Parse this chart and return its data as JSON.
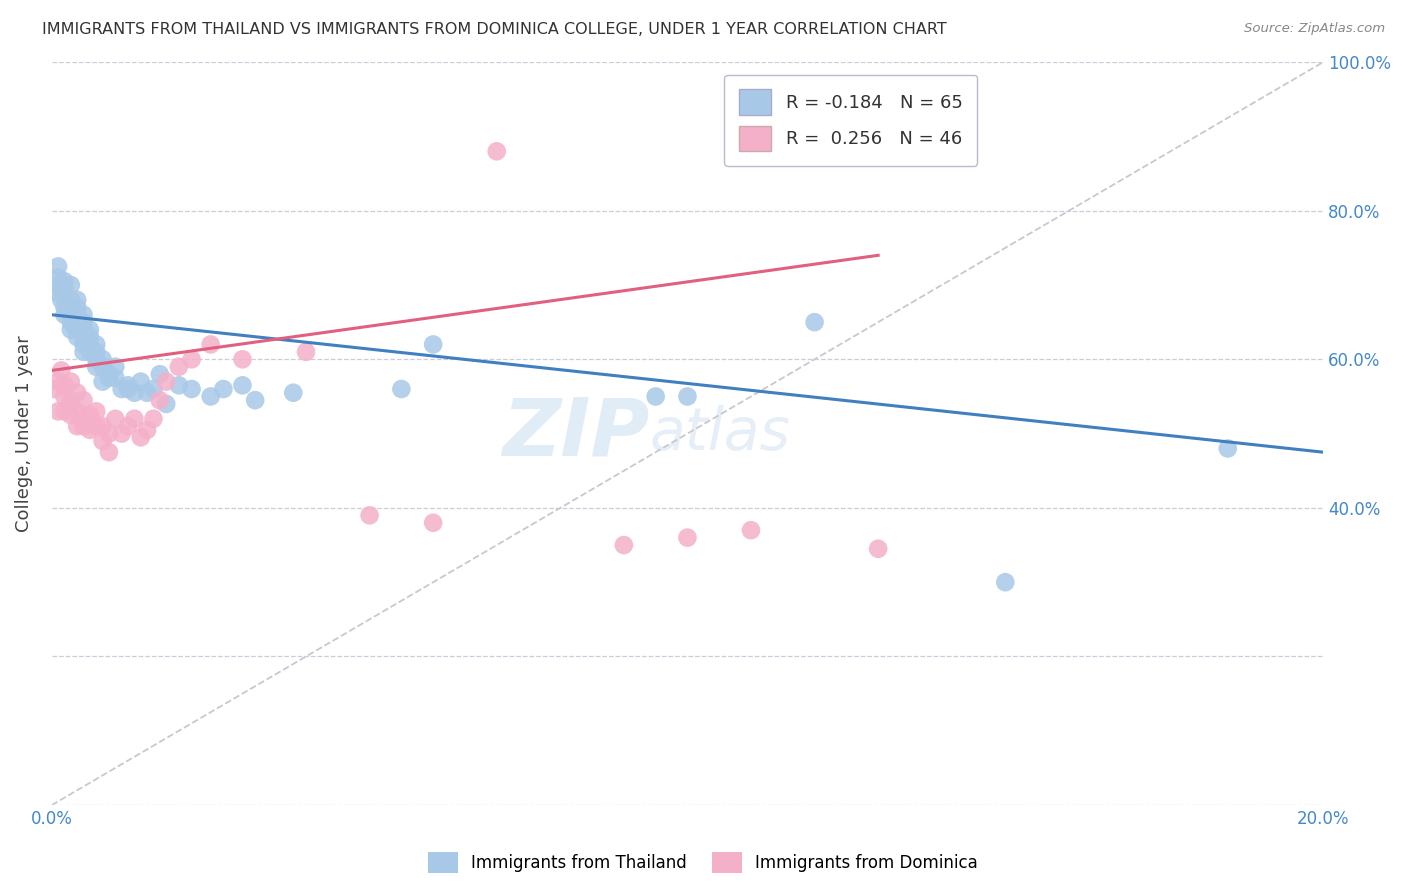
{
  "title": "IMMIGRANTS FROM THAILAND VS IMMIGRANTS FROM DOMINICA COLLEGE, UNDER 1 YEAR CORRELATION CHART",
  "source": "Source: ZipAtlas.com",
  "ylabel": "College, Under 1 year",
  "x_min": 0.0,
  "x_max": 0.2,
  "y_min": 0.0,
  "y_max": 1.0,
  "legend_r_thailand": "-0.184",
  "legend_n_thailand": "65",
  "legend_r_dominica": "0.256",
  "legend_n_dominica": "46",
  "color_thailand": "#a8c8e8",
  "color_dominica": "#f4b0c8",
  "color_line_thailand": "#4080c0",
  "color_line_dominica": "#e06080",
  "color_line_diagonal": "#c8c8d0",
  "watermark_zip": "ZIP",
  "watermark_atlas": "atlas",
  "thailand_x": [
    0.0005,
    0.001,
    0.001,
    0.001,
    0.0015,
    0.002,
    0.002,
    0.002,
    0.002,
    0.0025,
    0.003,
    0.003,
    0.003,
    0.003,
    0.003,
    0.0035,
    0.004,
    0.004,
    0.004,
    0.004,
    0.004,
    0.005,
    0.005,
    0.005,
    0.005,
    0.005,
    0.005,
    0.006,
    0.006,
    0.006,
    0.006,
    0.007,
    0.007,
    0.007,
    0.007,
    0.008,
    0.008,
    0.008,
    0.009,
    0.009,
    0.01,
    0.01,
    0.011,
    0.012,
    0.012,
    0.013,
    0.014,
    0.015,
    0.016,
    0.017,
    0.018,
    0.02,
    0.022,
    0.025,
    0.027,
    0.03,
    0.032,
    0.038,
    0.055,
    0.06,
    0.095,
    0.1,
    0.12,
    0.15,
    0.185
  ],
  "thailand_y": [
    0.7,
    0.71,
    0.69,
    0.725,
    0.68,
    0.695,
    0.67,
    0.66,
    0.705,
    0.665,
    0.68,
    0.65,
    0.66,
    0.64,
    0.7,
    0.645,
    0.63,
    0.66,
    0.67,
    0.65,
    0.68,
    0.62,
    0.64,
    0.63,
    0.61,
    0.65,
    0.66,
    0.61,
    0.63,
    0.615,
    0.64,
    0.59,
    0.61,
    0.62,
    0.6,
    0.57,
    0.59,
    0.6,
    0.575,
    0.58,
    0.575,
    0.59,
    0.56,
    0.565,
    0.56,
    0.555,
    0.57,
    0.555,
    0.56,
    0.58,
    0.54,
    0.565,
    0.56,
    0.55,
    0.56,
    0.565,
    0.545,
    0.555,
    0.56,
    0.62,
    0.55,
    0.55,
    0.65,
    0.3,
    0.48
  ],
  "dominica_x": [
    0.0005,
    0.001,
    0.001,
    0.0015,
    0.002,
    0.002,
    0.002,
    0.003,
    0.003,
    0.003,
    0.003,
    0.004,
    0.004,
    0.004,
    0.005,
    0.005,
    0.005,
    0.006,
    0.006,
    0.007,
    0.007,
    0.008,
    0.008,
    0.009,
    0.009,
    0.01,
    0.011,
    0.012,
    0.013,
    0.014,
    0.015,
    0.016,
    0.017,
    0.018,
    0.02,
    0.022,
    0.025,
    0.03,
    0.04,
    0.05,
    0.06,
    0.07,
    0.09,
    0.1,
    0.11,
    0.13
  ],
  "dominica_y": [
    0.56,
    0.57,
    0.53,
    0.585,
    0.55,
    0.53,
    0.565,
    0.525,
    0.545,
    0.57,
    0.54,
    0.51,
    0.53,
    0.555,
    0.52,
    0.545,
    0.51,
    0.505,
    0.525,
    0.51,
    0.53,
    0.49,
    0.51,
    0.475,
    0.5,
    0.52,
    0.5,
    0.51,
    0.52,
    0.495,
    0.505,
    0.52,
    0.545,
    0.57,
    0.59,
    0.6,
    0.62,
    0.6,
    0.61,
    0.39,
    0.38,
    0.88,
    0.35,
    0.36,
    0.37,
    0.345
  ],
  "trend_thailand_x0": 0.0,
  "trend_thailand_y0": 0.66,
  "trend_thailand_x1": 0.2,
  "trend_thailand_y1": 0.475,
  "trend_dominica_x0": 0.0,
  "trend_dominica_y0": 0.585,
  "trend_dominica_x1": 0.13,
  "trend_dominica_y1": 0.74
}
